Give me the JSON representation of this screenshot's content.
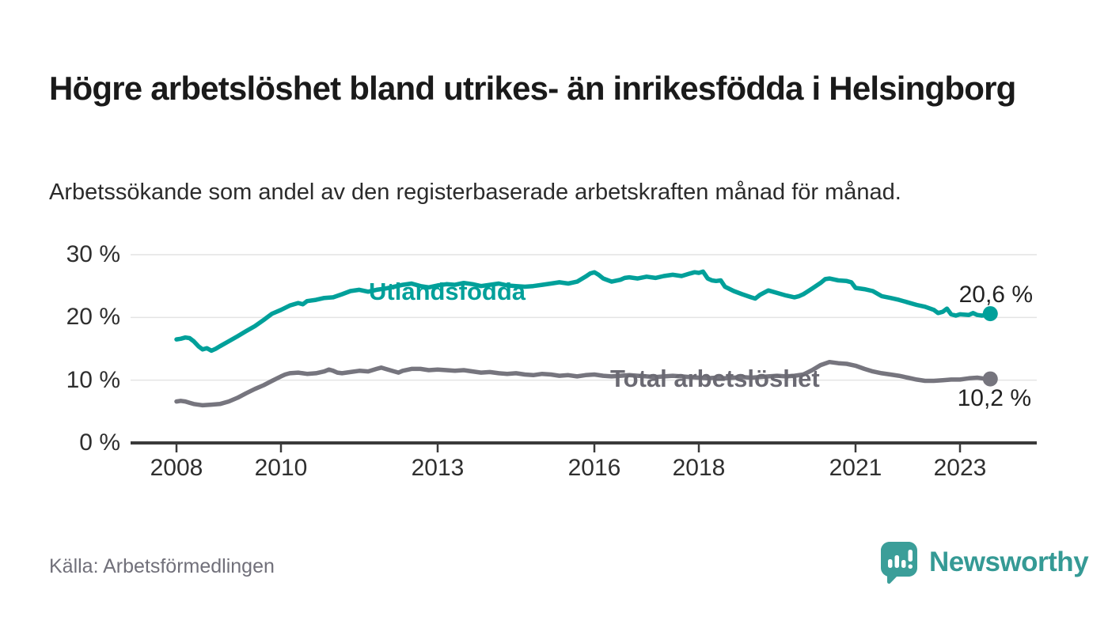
{
  "header": {},
  "footer": {
    "source": "Källa: Arbetsförmedlingen",
    "brand": "Newsworthy",
    "logo_icon": "newsworthy-speech-bubble-bar-chart-icon"
  },
  "colors": {
    "foreign_born_line": "#00A09A",
    "total_line": "#76757E",
    "title_text": "#1A1A1A",
    "axis_text": "#2F2F2F",
    "gridline": "#E4E4E4",
    "axis_line": "#3A3A3A",
    "source_text": "#71707A",
    "brand_teal": "#359A95"
  },
  "chart_data": {
    "type": "line",
    "title": "Högre arbetslöshet bland utrikes- än inrikesfödda i Helsingborg",
    "subtitle": "Arbetssökande som andel av den registerbaserade arbetskraften månad för månad.",
    "xlabel": "",
    "ylabel": "",
    "ylim": [
      0,
      32
    ],
    "xlim": [
      2007.1,
      2024.4
    ],
    "grid": "horizontal",
    "legend_position": "inline-labels",
    "yticks": [
      {
        "value": 0,
        "label": "0 %"
      },
      {
        "value": 10,
        "label": "10 %"
      },
      {
        "value": 20,
        "label": "20 %"
      },
      {
        "value": 30,
        "label": "30 %"
      }
    ],
    "xticks": [
      {
        "value": 2008,
        "label": "2008"
      },
      {
        "value": 2010,
        "label": "2010"
      },
      {
        "value": 2013,
        "label": "2013"
      },
      {
        "value": 2016,
        "label": "2016"
      },
      {
        "value": 2018,
        "label": "2018"
      },
      {
        "value": 2021,
        "label": "2021"
      },
      {
        "value": 2023,
        "label": "2023"
      }
    ],
    "series": [
      {
        "name": "Utlandsfödda",
        "color": "#00A09A",
        "end_value": 20.6,
        "end_label": "20,6 %",
        "points": [
          [
            2008.0,
            16.5
          ],
          [
            2008.08,
            16.6
          ],
          [
            2008.17,
            16.8
          ],
          [
            2008.25,
            16.7
          ],
          [
            2008.33,
            16.2
          ],
          [
            2008.42,
            15.4
          ],
          [
            2008.5,
            14.9
          ],
          [
            2008.58,
            15.1
          ],
          [
            2008.67,
            14.7
          ],
          [
            2008.75,
            15.0
          ],
          [
            2008.83,
            15.4
          ],
          [
            2009.0,
            16.2
          ],
          [
            2009.17,
            17.0
          ],
          [
            2009.33,
            17.8
          ],
          [
            2009.5,
            18.6
          ],
          [
            2009.67,
            19.6
          ],
          [
            2009.83,
            20.6
          ],
          [
            2010.0,
            21.2
          ],
          [
            2010.17,
            21.9
          ],
          [
            2010.33,
            22.3
          ],
          [
            2010.42,
            22.1
          ],
          [
            2010.5,
            22.6
          ],
          [
            2010.67,
            22.8
          ],
          [
            2010.83,
            23.1
          ],
          [
            2011.0,
            23.2
          ],
          [
            2011.17,
            23.7
          ],
          [
            2011.33,
            24.2
          ],
          [
            2011.5,
            24.4
          ],
          [
            2011.67,
            24.1
          ],
          [
            2011.83,
            24.4
          ],
          [
            2012.0,
            24.6
          ],
          [
            2012.17,
            24.9
          ],
          [
            2012.33,
            25.2
          ],
          [
            2012.5,
            25.4
          ],
          [
            2012.67,
            25.0
          ],
          [
            2012.83,
            24.8
          ],
          [
            2013.0,
            25.1
          ],
          [
            2013.17,
            25.3
          ],
          [
            2013.33,
            25.2
          ],
          [
            2013.5,
            25.5
          ],
          [
            2013.67,
            25.3
          ],
          [
            2013.83,
            25.0
          ],
          [
            2014.0,
            25.2
          ],
          [
            2014.17,
            25.4
          ],
          [
            2014.33,
            25.1
          ],
          [
            2014.5,
            25.0
          ],
          [
            2014.67,
            24.9
          ],
          [
            2014.83,
            25.0
          ],
          [
            2015.0,
            25.2
          ],
          [
            2015.17,
            25.4
          ],
          [
            2015.33,
            25.6
          ],
          [
            2015.5,
            25.4
          ],
          [
            2015.67,
            25.7
          ],
          [
            2015.83,
            26.5
          ],
          [
            2015.92,
            27.0
          ],
          [
            2016.0,
            27.2
          ],
          [
            2016.08,
            26.8
          ],
          [
            2016.17,
            26.2
          ],
          [
            2016.33,
            25.7
          ],
          [
            2016.5,
            26.0
          ],
          [
            2016.58,
            26.3
          ],
          [
            2016.67,
            26.4
          ],
          [
            2016.83,
            26.2
          ],
          [
            2017.0,
            26.5
          ],
          [
            2017.17,
            26.3
          ],
          [
            2017.33,
            26.6
          ],
          [
            2017.5,
            26.8
          ],
          [
            2017.67,
            26.6
          ],
          [
            2017.83,
            27.0
          ],
          [
            2017.92,
            27.2
          ],
          [
            2018.0,
            27.1
          ],
          [
            2018.08,
            27.3
          ],
          [
            2018.17,
            26.2
          ],
          [
            2018.25,
            25.9
          ],
          [
            2018.33,
            25.8
          ],
          [
            2018.42,
            25.9
          ],
          [
            2018.5,
            24.9
          ],
          [
            2018.67,
            24.2
          ],
          [
            2018.83,
            23.7
          ],
          [
            2019.0,
            23.2
          ],
          [
            2019.08,
            23.0
          ],
          [
            2019.17,
            23.6
          ],
          [
            2019.33,
            24.3
          ],
          [
            2019.5,
            23.9
          ],
          [
            2019.67,
            23.5
          ],
          [
            2019.83,
            23.2
          ],
          [
            2019.92,
            23.4
          ],
          [
            2020.0,
            23.7
          ],
          [
            2020.17,
            24.6
          ],
          [
            2020.33,
            25.5
          ],
          [
            2020.42,
            26.1
          ],
          [
            2020.5,
            26.2
          ],
          [
            2020.67,
            25.9
          ],
          [
            2020.83,
            25.8
          ],
          [
            2020.92,
            25.6
          ],
          [
            2021.0,
            24.7
          ],
          [
            2021.17,
            24.5
          ],
          [
            2021.33,
            24.2
          ],
          [
            2021.5,
            23.4
          ],
          [
            2021.67,
            23.1
          ],
          [
            2021.83,
            22.8
          ],
          [
            2022.0,
            22.4
          ],
          [
            2022.17,
            22.0
          ],
          [
            2022.33,
            21.7
          ],
          [
            2022.5,
            21.2
          ],
          [
            2022.58,
            20.7
          ],
          [
            2022.67,
            20.9
          ],
          [
            2022.75,
            21.4
          ],
          [
            2022.83,
            20.5
          ],
          [
            2022.92,
            20.3
          ],
          [
            2023.0,
            20.5
          ],
          [
            2023.17,
            20.4
          ],
          [
            2023.25,
            20.7
          ],
          [
            2023.33,
            20.4
          ],
          [
            2023.42,
            20.3
          ],
          [
            2023.5,
            20.4
          ],
          [
            2023.58,
            20.6
          ]
        ]
      },
      {
        "name": "Total arbetslöshet",
        "color": "#76757E",
        "end_value": 10.2,
        "end_label": "10,2 %",
        "points": [
          [
            2008.0,
            6.6
          ],
          [
            2008.08,
            6.7
          ],
          [
            2008.17,
            6.6
          ],
          [
            2008.25,
            6.4
          ],
          [
            2008.33,
            6.2
          ],
          [
            2008.5,
            6.0
          ],
          [
            2008.67,
            6.1
          ],
          [
            2008.83,
            6.2
          ],
          [
            2009.0,
            6.6
          ],
          [
            2009.17,
            7.2
          ],
          [
            2009.33,
            7.9
          ],
          [
            2009.5,
            8.6
          ],
          [
            2009.67,
            9.2
          ],
          [
            2009.83,
            9.9
          ],
          [
            2010.0,
            10.6
          ],
          [
            2010.08,
            10.9
          ],
          [
            2010.17,
            11.1
          ],
          [
            2010.33,
            11.2
          ],
          [
            2010.5,
            11.0
          ],
          [
            2010.67,
            11.1
          ],
          [
            2010.83,
            11.4
          ],
          [
            2010.92,
            11.7
          ],
          [
            2011.0,
            11.5
          ],
          [
            2011.08,
            11.2
          ],
          [
            2011.17,
            11.1
          ],
          [
            2011.33,
            11.3
          ],
          [
            2011.5,
            11.5
          ],
          [
            2011.67,
            11.4
          ],
          [
            2011.83,
            11.8
          ],
          [
            2011.92,
            12.0
          ],
          [
            2012.0,
            11.8
          ],
          [
            2012.17,
            11.4
          ],
          [
            2012.25,
            11.2
          ],
          [
            2012.33,
            11.5
          ],
          [
            2012.5,
            11.8
          ],
          [
            2012.67,
            11.8
          ],
          [
            2012.83,
            11.6
          ],
          [
            2013.0,
            11.7
          ],
          [
            2013.17,
            11.6
          ],
          [
            2013.33,
            11.5
          ],
          [
            2013.5,
            11.6
          ],
          [
            2013.67,
            11.4
          ],
          [
            2013.83,
            11.2
          ],
          [
            2014.0,
            11.3
          ],
          [
            2014.17,
            11.1
          ],
          [
            2014.33,
            11.0
          ],
          [
            2014.5,
            11.1
          ],
          [
            2014.67,
            10.9
          ],
          [
            2014.83,
            10.8
          ],
          [
            2015.0,
            11.0
          ],
          [
            2015.17,
            10.9
          ],
          [
            2015.33,
            10.7
          ],
          [
            2015.5,
            10.8
          ],
          [
            2015.67,
            10.6
          ],
          [
            2015.83,
            10.8
          ],
          [
            2016.0,
            10.9
          ],
          [
            2016.17,
            10.7
          ],
          [
            2016.33,
            10.6
          ],
          [
            2016.5,
            10.7
          ],
          [
            2016.67,
            10.8
          ],
          [
            2016.83,
            10.7
          ],
          [
            2017.0,
            10.6
          ],
          [
            2017.17,
            10.5
          ],
          [
            2017.33,
            10.6
          ],
          [
            2017.5,
            10.7
          ],
          [
            2017.67,
            10.6
          ],
          [
            2017.83,
            10.5
          ],
          [
            2018.0,
            10.4
          ],
          [
            2018.17,
            10.3
          ],
          [
            2018.33,
            10.4
          ],
          [
            2018.5,
            10.3
          ],
          [
            2018.67,
            10.4
          ],
          [
            2018.83,
            10.5
          ],
          [
            2019.0,
            10.4
          ],
          [
            2019.17,
            10.5
          ],
          [
            2019.33,
            10.6
          ],
          [
            2019.5,
            10.7
          ],
          [
            2019.67,
            10.6
          ],
          [
            2019.83,
            10.7
          ],
          [
            2020.0,
            10.9
          ],
          [
            2020.17,
            11.6
          ],
          [
            2020.33,
            12.4
          ],
          [
            2020.5,
            12.9
          ],
          [
            2020.67,
            12.7
          ],
          [
            2020.83,
            12.6
          ],
          [
            2021.0,
            12.3
          ],
          [
            2021.17,
            11.8
          ],
          [
            2021.33,
            11.4
          ],
          [
            2021.5,
            11.1
          ],
          [
            2021.67,
            10.9
          ],
          [
            2021.83,
            10.7
          ],
          [
            2022.0,
            10.4
          ],
          [
            2022.17,
            10.1
          ],
          [
            2022.33,
            9.9
          ],
          [
            2022.5,
            9.9
          ],
          [
            2022.67,
            10.0
          ],
          [
            2022.83,
            10.1
          ],
          [
            2023.0,
            10.1
          ],
          [
            2023.17,
            10.3
          ],
          [
            2023.33,
            10.4
          ],
          [
            2023.42,
            10.3
          ],
          [
            2023.5,
            10.2
          ],
          [
            2023.58,
            10.2
          ]
        ]
      }
    ]
  }
}
